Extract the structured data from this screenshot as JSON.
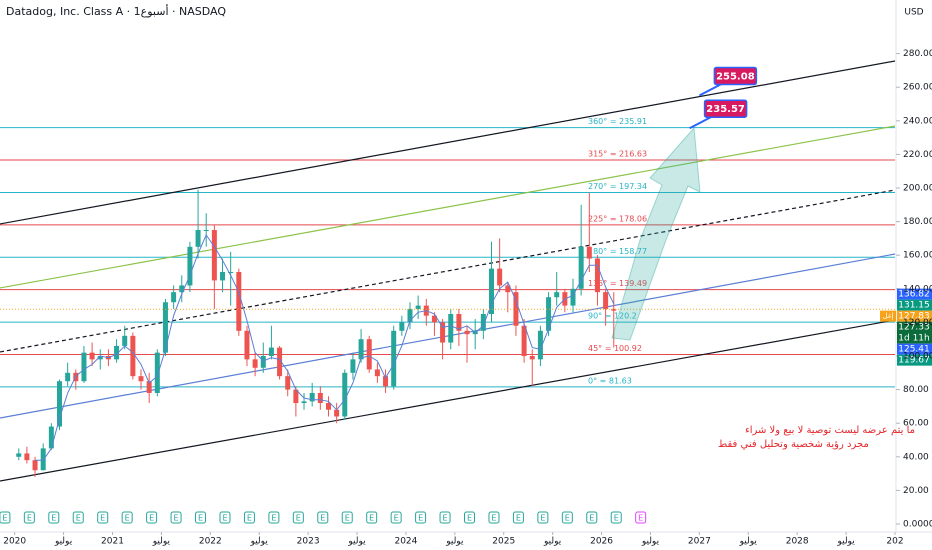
{
  "chart_data": {
    "type": "candlestick",
    "title": "Datadog, Inc. Class A · 1أسبوع · NASDAQ",
    "currency": "USD",
    "xlim": [
      2019.85,
      2029.0
    ],
    "ylim": [
      -5,
      300
    ],
    "yticks": [
      {
        "value": 0,
        "label": "0.0000"
      },
      {
        "value": 20,
        "label": "20.00"
      },
      {
        "value": 40,
        "label": "40.00"
      },
      {
        "value": 60,
        "label": "60.00"
      },
      {
        "value": 80,
        "label": "80.00"
      },
      {
        "value": 100,
        "label": "100.00"
      },
      {
        "value": 120,
        "label": "120.00"
      },
      {
        "value": 140,
        "label": "140.00"
      },
      {
        "value": 160,
        "label": "160.00"
      },
      {
        "value": 180,
        "label": "180.00"
      },
      {
        "value": 200,
        "label": "200.00"
      },
      {
        "value": 220,
        "label": "220.00"
      },
      {
        "value": 240,
        "label": "240.00"
      },
      {
        "value": 260,
        "label": "260.00"
      },
      {
        "value": 280,
        "label": "280.00"
      }
    ],
    "xticks": [
      2020,
      {
        "value": 2020.5,
        "label": "يوليو"
      },
      2021,
      {
        "value": 2021.5,
        "label": "يوليو"
      },
      2022,
      {
        "value": 2022.5,
        "label": "يوليو"
      },
      2023,
      {
        "value": 2023.5,
        "label": "يوليو"
      },
      2024,
      {
        "value": 2024.5,
        "label": "يوليو"
      },
      2025,
      {
        "value": 2025.5,
        "label": "يوليو"
      },
      2026,
      {
        "value": 2026.5,
        "label": "يوليو"
      },
      2027,
      {
        "value": 2027.5,
        "label": "يوليو"
      },
      2028,
      {
        "value": 2028.5,
        "label": "يوليو"
      },
      {
        "value": 2029,
        "label": "202"
      }
    ],
    "up_color": "#26a69a",
    "down_color": "#ef5350",
    "candles": {
      "x_start": 2020,
      "x_step": 0.08333,
      "open": [
        40,
        42,
        38,
        32,
        45,
        58,
        85,
        90,
        85,
        102,
        98,
        100,
        98,
        106,
        112,
        88,
        85,
        78,
        102,
        132,
        138,
        142,
        165,
        175,
        175,
        145,
        150,
        150,
        115,
        98,
        93,
        100,
        105,
        88,
        80,
        72,
        73,
        78,
        72,
        68,
        64,
        90,
        98,
        110,
        92,
        88,
        82,
        115,
        120,
        128,
        130,
        124,
        120,
        108,
        125,
        115,
        113,
        115,
        125,
        152,
        142,
        138,
        118,
        100,
        98,
        115,
        135,
        138,
        130,
        140,
        165,
        158,
        138,
        128
      ],
      "high": [
        45,
        46,
        40,
        48,
        60,
        86,
        96,
        92,
        106,
        108,
        104,
        104,
        110,
        118,
        114,
        92,
        90,
        104,
        134,
        142,
        148,
        168,
        199,
        185,
        178,
        158,
        162,
        152,
        118,
        102,
        108,
        118,
        106,
        92,
        82,
        78,
        84,
        82,
        76,
        72,
        92,
        102,
        116,
        112,
        96,
        92,
        118,
        124,
        132,
        136,
        134,
        126,
        122,
        128,
        128,
        118,
        122,
        128,
        168,
        170,
        144,
        142,
        122,
        104,
        118,
        138,
        150,
        140,
        146,
        190,
        197,
        160,
        140,
        138
      ],
      "low": [
        38,
        36,
        28,
        32,
        44,
        56,
        82,
        80,
        84,
        94,
        92,
        94,
        96,
        104,
        86,
        80,
        72,
        76,
        100,
        128,
        132,
        138,
        158,
        165,
        128,
        138,
        130,
        112,
        94,
        88,
        90,
        98,
        86,
        76,
        64,
        68,
        70,
        68,
        64,
        60,
        62,
        86,
        96,
        90,
        84,
        78,
        80,
        112,
        116,
        122,
        118,
        112,
        98,
        104,
        106,
        96,
        104,
        110,
        120,
        138,
        126,
        112,
        96,
        82,
        94,
        112,
        130,
        126,
        126,
        136,
        150,
        130,
        118,
        105
      ],
      "close": [
        42,
        38,
        32,
        45,
        58,
        85,
        90,
        85,
        102,
        98,
        100,
        98,
        106,
        112,
        88,
        85,
        78,
        102,
        132,
        138,
        142,
        165,
        175,
        175,
        145,
        150,
        150,
        115,
        98,
        93,
        100,
        105,
        88,
        80,
        72,
        73,
        78,
        72,
        68,
        64,
        90,
        98,
        110,
        92,
        88,
        82,
        115,
        120,
        128,
        130,
        124,
        120,
        108,
        125,
        115,
        113,
        115,
        125,
        152,
        142,
        138,
        118,
        100,
        98,
        115,
        135,
        138,
        130,
        140,
        165,
        158,
        138,
        128,
        127
      ]
    },
    "moving_average": {
      "color": "#5b7fd6",
      "values": [
        null,
        null,
        38,
        38,
        45,
        63,
        78,
        88,
        92,
        95,
        100,
        99,
        101,
        106,
        102,
        95,
        84,
        88,
        104,
        124,
        137,
        148,
        161,
        172,
        165,
        157,
        148,
        138,
        121,
        102,
        97,
        99,
        98,
        91,
        80,
        75,
        74,
        74,
        73,
        68,
        74,
        84,
        99,
        100,
        97,
        87,
        95,
        106,
        121,
        126,
        127,
        125,
        117,
        118,
        116,
        118,
        114,
        118,
        131,
        140,
        144,
        133,
        119,
        105,
        104,
        116,
        129,
        134,
        136,
        145,
        154,
        154,
        141,
        131
      ]
    },
    "levels": [
      {
        "value": 81.63,
        "label": "0° = 81.63",
        "color": "#26b5c7"
      },
      {
        "value": 100.92,
        "label": "45° = 100.92",
        "color": "#e5484d"
      },
      {
        "value": 120.2,
        "label": "90° = 120.2",
        "color": "#26b5c7"
      },
      {
        "value": 139.49,
        "label": "135° = 139.49",
        "color": "#e5484d"
      },
      {
        "value": 158.77,
        "label": "180° = 158.77",
        "color": "#26b5c7"
      },
      {
        "value": 178.06,
        "label": "225° = 178.06",
        "color": "#e5484d"
      },
      {
        "value": 197.34,
        "label": "270° = 197.34",
        "color": "#26b5c7"
      },
      {
        "value": 216.63,
        "label": "315° = 216.63",
        "color": "#e5484d"
      },
      {
        "value": 235.91,
        "label": "360° = 235.91",
        "color": "#26b5c7"
      }
    ],
    "trend_lines": [
      {
        "x": [
          2019.85,
          2029.0
        ],
        "y": [
          178.6,
          275.6
        ],
        "color": "#131722",
        "dash": false
      },
      {
        "x": [
          2019.85,
          2029.0
        ],
        "y": [
          25.6,
          121.4
        ],
        "color": "#131722",
        "dash": false
      },
      {
        "x": [
          2019.85,
          2029.0
        ],
        "y": [
          102.4,
          198.8
        ],
        "color": "#131722",
        "dash": true
      },
      {
        "x": [
          2019.85,
          2029.0
        ],
        "y": [
          140.5,
          236.9
        ],
        "color": "#8bc34a",
        "dash": false
      },
      {
        "x": [
          2019.85,
          2029.0
        ],
        "y": [
          63.1,
          160.7
        ],
        "color": "#5b7fd6",
        "dash": false
      }
    ],
    "callouts": [
      {
        "x": 2027.0,
        "value": 255.08,
        "label": "255.08"
      },
      {
        "x": 2026.9,
        "value": 235.57,
        "label": "235.57"
      }
    ],
    "price_tags": [
      {
        "value": 136.82,
        "label": "136.82",
        "color": "#2962ff"
      },
      {
        "value": 131.15,
        "label": "131.15",
        "color": "#089981"
      },
      {
        "value": 127.83,
        "label": "127.83",
        "color": "#f7a21b",
        "note": "إغل"
      },
      {
        "value": 127.33,
        "label": "127.33",
        "color": "#0b6b3a",
        "note": "1d 11h"
      },
      {
        "value": 125.41,
        "label": "125.41",
        "color": "#2962ff"
      },
      {
        "value": 119.67,
        "label": "119.67",
        "color": "#089981"
      }
    ],
    "earnings": {
      "label": "E",
      "x": [
        2019.9,
        2020.15,
        2020.4,
        2020.65,
        2020.9,
        2021.15,
        2021.4,
        2021.65,
        2021.9,
        2022.15,
        2022.4,
        2022.65,
        2022.9,
        2023.15,
        2023.4,
        2023.65,
        2023.9,
        2024.15,
        2024.4,
        2024.65,
        2024.9,
        2025.15,
        2025.4,
        2025.65,
        2025.9,
        2026.15
      ],
      "upcoming_x": 2026.4
    },
    "annotations": [
      "ما يتم عرضه ليست توصية  لا بيع ولا شراء",
      "مجرد رؤية شخصية وتحليل فني فقط"
    ]
  }
}
